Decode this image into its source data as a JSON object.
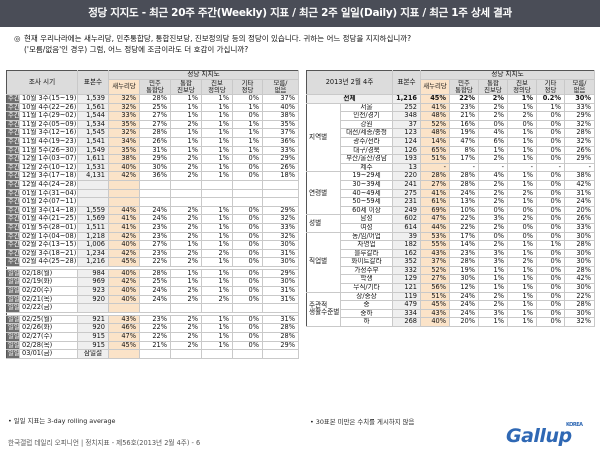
{
  "header": {
    "title": "정당 지지도 - 최근 20주 주간(Weekly) 지표 / 최근 2주 일일(Daily) 지표 / 최근 1주 상세 결과"
  },
  "question": {
    "bullet": "◎",
    "line1": "현재 우리나라에는 새누리당, 민주통합당, 통합진보당, 진보정의당 등의 정당이 있습니다. 귀하는 어느 정당을 지지하십니까?",
    "line2": "('모름/없음'인 경우) 그럼, 어느 정당에 조금이라도 더 호감이 가십니까?"
  },
  "left_table": {
    "h_period": "조사 시기",
    "h_base": "표본수",
    "h_group": "정당 지지도",
    "h_cols": [
      "새누리당",
      "민주\n통합당",
      "통합\n진보당",
      "진보\n정의당",
      "기타\n정당",
      "모름/\n없음"
    ],
    "weekly_label": "주간",
    "weekly": [
      {
        "p": "10월 3주(15~19)",
        "v": [
          "1,539",
          "32%",
          "28%",
          "1%",
          "1%",
          "0%",
          "37%"
        ]
      },
      {
        "p": "10월 4주(22~26)",
        "v": [
          "1,561",
          "32%",
          "25%",
          "1%",
          "1%",
          "1%",
          "40%"
        ]
      },
      {
        "p": "11월 1주(29~02)",
        "v": [
          "1,544",
          "33%",
          "27%",
          "1%",
          "1%",
          "0%",
          "38%"
        ]
      },
      {
        "p": "11월 2주(05~09)",
        "v": [
          "1,534",
          "35%",
          "27%",
          "2%",
          "1%",
          "1%",
          "35%"
        ]
      },
      {
        "p": "11월 3주(12~16)",
        "v": [
          "1,545",
          "32%",
          "28%",
          "1%",
          "1%",
          "1%",
          "37%"
        ]
      },
      {
        "p": "11월 4주(19~23)",
        "v": [
          "1,541",
          "34%",
          "26%",
          "1%",
          "1%",
          "1%",
          "36%"
        ]
      },
      {
        "p": "11월 5주(26~30)",
        "v": [
          "1,549",
          "35%",
          "31%",
          "1%",
          "1%",
          "1%",
          "33%"
        ]
      },
      {
        "p": "12월 1주(03~07)",
        "v": [
          "1,611",
          "38%",
          "29%",
          "2%",
          "1%",
          "0%",
          "29%"
        ]
      },
      {
        "p": "12월 2주(10~12)",
        "v": [
          "1,531",
          "40%",
          "30%",
          "2%",
          "1%",
          "0%",
          "26%"
        ]
      },
      {
        "p": "12월 3주(17~18)",
        "v": [
          "4,131",
          "42%",
          "36%",
          "2%",
          "1%",
          "0%",
          "18%"
        ]
      },
      {
        "p": "12월 4주(24~28)",
        "v": [
          "",
          "",
          "",
          "",
          "",
          "",
          ""
        ]
      },
      {
        "p": "01월 1주(31~04)",
        "v": [
          "",
          "",
          "",
          "",
          "",
          "",
          ""
        ]
      },
      {
        "p": "01월 2주(07~11)",
        "v": [
          "",
          "",
          "",
          "",
          "",
          "",
          ""
        ]
      },
      {
        "p": "01월 3주(14~18)",
        "v": [
          "1,559",
          "44%",
          "24%",
          "2%",
          "1%",
          "0%",
          "29%"
        ]
      },
      {
        "p": "01월 4주(21~25)",
        "v": [
          "1,569",
          "41%",
          "24%",
          "2%",
          "1%",
          "0%",
          "32%"
        ]
      },
      {
        "p": "01월 5주(28~01)",
        "v": [
          "1,511",
          "41%",
          "23%",
          "2%",
          "1%",
          "0%",
          "33%"
        ]
      },
      {
        "p": "02월 1주(04~08)",
        "v": [
          "1,218",
          "42%",
          "23%",
          "2%",
          "1%",
          "0%",
          "32%"
        ]
      },
      {
        "p": "02월 2주(13~15)",
        "v": [
          "1,006",
          "40%",
          "27%",
          "1%",
          "1%",
          "0%",
          "30%"
        ]
      },
      {
        "p": "02월 3주(18~21)",
        "v": [
          "1,234",
          "42%",
          "23%",
          "2%",
          "2%",
          "0%",
          "31%"
        ]
      },
      {
        "p": "02월 4주(25~28)",
        "v": [
          "1,216",
          "45%",
          "22%",
          "2%",
          "1%",
          "0%",
          "30%"
        ]
      }
    ],
    "daily_label": "일일",
    "daily1": [
      {
        "p": "02/18(월)",
        "v": [
          "984",
          "40%",
          "28%",
          "1%",
          "1%",
          "0%",
          "29%"
        ]
      },
      {
        "p": "02/19(화)",
        "v": [
          "969",
          "42%",
          "25%",
          "1%",
          "1%",
          "0%",
          "30%"
        ]
      },
      {
        "p": "02/20(수)",
        "v": [
          "923",
          "40%",
          "24%",
          "2%",
          "1%",
          "0%",
          "31%"
        ]
      },
      {
        "p": "02/21(목)",
        "v": [
          "920",
          "40%",
          "24%",
          "2%",
          "2%",
          "0%",
          "31%"
        ]
      },
      {
        "p": "02/22(금)",
        "v": [
          "",
          "",
          "",
          "",
          "",
          "",
          ""
        ]
      }
    ],
    "daily2": [
      {
        "p": "02/25(월)",
        "v": [
          "921",
          "43%",
          "23%",
          "2%",
          "1%",
          "0%",
          "31%"
        ]
      },
      {
        "p": "02/26(화)",
        "v": [
          "920",
          "46%",
          "22%",
          "2%",
          "1%",
          "0%",
          "28%"
        ]
      },
      {
        "p": "02/27(수)",
        "v": [
          "915",
          "47%",
          "22%",
          "2%",
          "1%",
          "0%",
          "28%"
        ]
      },
      {
        "p": "02/28(목)",
        "v": [
          "915",
          "45%",
          "21%",
          "2%",
          "1%",
          "0%",
          "29%"
        ]
      },
      {
        "p": "03/01(금)",
        "v": [
          "삼일절",
          "",
          "",
          "",
          "",
          "",
          ""
        ]
      }
    ]
  },
  "right_table": {
    "h_title": "2013년 2월 4주",
    "h_base": "표본수",
    "h_group": "정당 지지도",
    "h_cols": [
      "새누리당",
      "민주\n통합당",
      "통합\n진보당",
      "진보\n정의당",
      "기타\n정당",
      "모름/\n없음"
    ],
    "total": {
      "label": "전체",
      "v": [
        "1,216",
        "45%",
        "22%",
        "2%",
        "1%",
        "0.2%",
        "30%"
      ]
    },
    "groups": [
      {
        "cat": "지역별",
        "rows": [
          {
            "s": "서울",
            "v": [
              "252",
              "41%",
              "23%",
              "2%",
              "1%",
              "1%",
              "33%"
            ]
          },
          {
            "s": "인천/경기",
            "v": [
              "348",
              "48%",
              "21%",
              "2%",
              "2%",
              "0%",
              "29%"
            ]
          },
          {
            "s": "강원",
            "v": [
              "37",
              "52%",
              "16%",
              "0%",
              "0%",
              "0%",
              "32%"
            ]
          },
          {
            "s": "대전/세종/충청",
            "v": [
              "123",
              "48%",
              "19%",
              "4%",
              "1%",
              "0%",
              "28%"
            ]
          },
          {
            "s": "광주/전라",
            "v": [
              "124",
              "14%",
              "47%",
              "6%",
              "1%",
              "0%",
              "32%"
            ]
          },
          {
            "s": "대구/경북",
            "v": [
              "126",
              "65%",
              "8%",
              "1%",
              "1%",
              "0%",
              "26%"
            ]
          },
          {
            "s": "부산/울산/경남",
            "v": [
              "193",
              "51%",
              "17%",
              "2%",
              "1%",
              "0%",
              "29%"
            ]
          },
          {
            "s": "제주",
            "v": [
              "13",
              "-",
              "-",
              "-",
              "-",
              "-",
              "-"
            ]
          }
        ]
      },
      {
        "cat": "연령별",
        "rows": [
          {
            "s": "19~29세",
            "v": [
              "220",
              "28%",
              "28%",
              "4%",
              "1%",
              "0%",
              "38%"
            ]
          },
          {
            "s": "30~39세",
            "v": [
              "241",
              "27%",
              "28%",
              "2%",
              "1%",
              "0%",
              "42%"
            ]
          },
          {
            "s": "40~49세",
            "v": [
              "275",
              "41%",
              "24%",
              "2%",
              "2%",
              "0%",
              "31%"
            ]
          },
          {
            "s": "50~59세",
            "v": [
              "231",
              "61%",
              "13%",
              "2%",
              "1%",
              "0%",
              "24%"
            ]
          },
          {
            "s": "60세 이상",
            "v": [
              "249",
              "69%",
              "10%",
              "0%",
              "0%",
              "0%",
              "20%"
            ]
          }
        ]
      },
      {
        "cat": "성별",
        "rows": [
          {
            "s": "남성",
            "v": [
              "602",
              "47%",
              "22%",
              "3%",
              "2%",
              "0%",
              "26%"
            ]
          },
          {
            "s": "여성",
            "v": [
              "614",
              "44%",
              "22%",
              "2%",
              "0%",
              "0%",
              "33%"
            ]
          }
        ]
      },
      {
        "cat": "직업별",
        "rows": [
          {
            "s": "농/임/어업",
            "v": [
              "39",
              "53%",
              "17%",
              "0%",
              "0%",
              "0%",
              "30%"
            ]
          },
          {
            "s": "자영업",
            "v": [
              "182",
              "55%",
              "14%",
              "2%",
              "1%",
              "1%",
              "28%"
            ]
          },
          {
            "s": "블루칼라",
            "v": [
              "162",
              "43%",
              "23%",
              "3%",
              "1%",
              "0%",
              "30%"
            ]
          },
          {
            "s": "화이트칼라",
            "v": [
              "352",
              "37%",
              "28%",
              "3%",
              "2%",
              "0%",
              "30%"
            ]
          },
          {
            "s": "가정주부",
            "v": [
              "332",
              "52%",
              "19%",
              "1%",
              "1%",
              "0%",
              "28%"
            ]
          },
          {
            "s": "학생",
            "v": [
              "129",
              "27%",
              "30%",
              "1%",
              "1%",
              "0%",
              "42%"
            ]
          },
          {
            "s": "무직/기타",
            "v": [
              "121",
              "56%",
              "12%",
              "1%",
              "1%",
              "0%",
              "30%"
            ]
          }
        ]
      },
      {
        "cat": "주관적\n생활수준별",
        "rows": [
          {
            "s": "상/중상",
            "v": [
              "119",
              "51%",
              "24%",
              "2%",
              "1%",
              "0%",
              "22%"
            ]
          },
          {
            "s": "중",
            "v": [
              "479",
              "45%",
              "24%",
              "2%",
              "1%",
              "0%",
              "28%"
            ]
          },
          {
            "s": "중하",
            "v": [
              "334",
              "43%",
              "24%",
              "3%",
              "1%",
              "0%",
              "30%"
            ]
          },
          {
            "s": "하",
            "v": [
              "268",
              "40%",
              "20%",
              "1%",
              "1%",
              "0%",
              "32%"
            ]
          }
        ]
      }
    ]
  },
  "footnotes": {
    "left": "• 일일 지표는 3-day rolling average",
    "right": "• 30표본 미만은 수치를 게시하지 않음",
    "bottom": "한국갤럽 데일리 오피니언 | 정치지표 - 제56호(2013년 2월 4주) - 6"
  },
  "logo": {
    "text": "Gallup",
    "korea": "KOREA"
  }
}
